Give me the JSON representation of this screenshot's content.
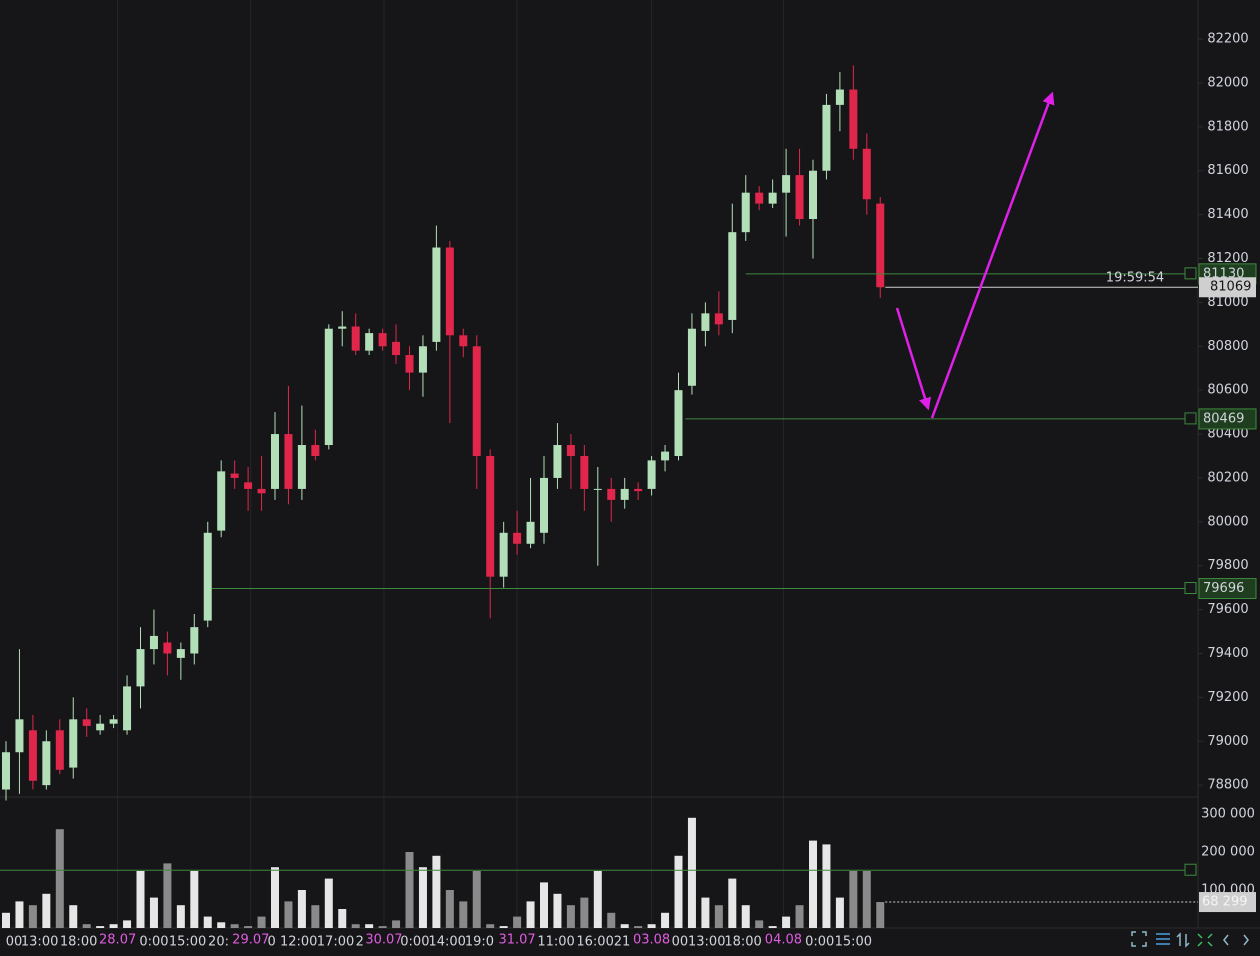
{
  "chart_data": {
    "type": "candlestick",
    "open": [
      78780,
      78950,
      79050,
      78800,
      79050,
      78880,
      79100,
      79050,
      79080,
      79050,
      79250,
      79420,
      79450,
      79380,
      79400,
      79550,
      79960,
      80220,
      80180,
      80150,
      80150,
      80400,
      80150,
      80350,
      80350,
      80880,
      80890,
      80780,
      80860,
      80820,
      80760,
      80680,
      80820,
      81250,
      80850,
      80800,
      80300,
      79750,
      79950,
      79900,
      79950,
      80200,
      80350,
      80300,
      80150,
      80150,
      80100,
      80150,
      80150,
      80280,
      80300,
      80620,
      80870,
      80950,
      80920,
      81320,
      81500,
      81450,
      81500,
      81580,
      81380,
      81600,
      81900,
      81970,
      81700,
      81450
    ],
    "high": [
      79000,
      79420,
      79120,
      79050,
      79100,
      79200,
      79150,
      79120,
      79120,
      79300,
      79520,
      79600,
      79500,
      79450,
      79580,
      80000,
      80280,
      80280,
      80250,
      80300,
      80500,
      80620,
      80530,
      80420,
      80900,
      80960,
      80950,
      80880,
      80880,
      80900,
      80800,
      80850,
      81350,
      81280,
      80880,
      80850,
      80330,
      80000,
      80050,
      80200,
      80300,
      80450,
      80400,
      80350,
      80250,
      80200,
      80200,
      80180,
      80300,
      80350,
      80680,
      80950,
      81000,
      81050,
      81450,
      81580,
      81530,
      81560,
      81700,
      81700,
      81650,
      81950,
      82050,
      82080,
      81770,
      81480
    ],
    "low": [
      78730,
      78760,
      78780,
      78780,
      78850,
      78830,
      79020,
      79030,
      79060,
      79030,
      79150,
      79350,
      79300,
      79280,
      79350,
      79520,
      79930,
      80150,
      80050,
      80050,
      80100,
      80080,
      80100,
      80280,
      80330,
      80800,
      80760,
      80760,
      80780,
      80720,
      80600,
      80570,
      80780,
      80450,
      80750,
      80150,
      79560,
      79700,
      79850,
      79880,
      79900,
      80150,
      80150,
      80050,
      79800,
      80000,
      80060,
      80100,
      80120,
      80230,
      80280,
      80580,
      80800,
      80850,
      80860,
      81280,
      81420,
      81430,
      81300,
      81350,
      81200,
      81560,
      81780,
      81650,
      81400,
      81020
    ],
    "close": [
      78950,
      79100,
      78820,
      79000,
      78870,
      79100,
      79070,
      79080,
      79100,
      79250,
      79420,
      79480,
      79400,
      79420,
      79520,
      79950,
      80230,
      80200,
      80150,
      80130,
      80400,
      80150,
      80350,
      80300,
      80880,
      80890,
      80780,
      80860,
      80800,
      80760,
      80680,
      80800,
      81250,
      80850,
      80800,
      80300,
      79750,
      79950,
      79900,
      80000,
      80200,
      80350,
      80300,
      80150,
      80150,
      80100,
      80150,
      80140,
      80280,
      80320,
      80600,
      80880,
      80950,
      80900,
      81320,
      81500,
      81450,
      81500,
      81580,
      81380,
      81600,
      81900,
      81970,
      81700,
      81470,
      81069
    ],
    "volume": [
      40000,
      70000,
      60000,
      90000,
      260000,
      60000,
      10000,
      5000,
      10000,
      20000,
      150000,
      80000,
      170000,
      60000,
      150000,
      30000,
      15000,
      10000,
      5000,
      30000,
      160000,
      70000,
      100000,
      60000,
      130000,
      50000,
      10000,
      10000,
      5000,
      20000,
      200000,
      160000,
      190000,
      100000,
      70000,
      150000,
      10000,
      5000,
      30000,
      70000,
      120000,
      90000,
      60000,
      80000,
      150000,
      40000,
      10000,
      5000,
      10000,
      40000,
      190000,
      290000,
      80000,
      60000,
      130000,
      60000,
      20000,
      5000,
      30000,
      60000,
      230000,
      220000,
      80000,
      150000,
      150000,
      68299
    ],
    "up_color": "#b2dfb8",
    "down_color": "#e0274b",
    "volume_up_color": "#e6e6e6",
    "volume_down_color": "#8a8a8a",
    "date_color": "#e05ce0",
    "ylim": [
      78746,
      82378
    ],
    "yticks": [
      78800,
      79000,
      79200,
      79400,
      79600,
      79800,
      80000,
      80200,
      80400,
      80600,
      80800,
      81000,
      81200,
      81400,
      81600,
      81800,
      82000,
      82200
    ],
    "volume_ylim": [
      0,
      344737
    ],
    "volume_ticks": [
      {
        "value": 100000,
        "label": "100 000"
      },
      {
        "value": 200000,
        "label": "200 000"
      },
      {
        "value": 300000,
        "label": "300 000"
      }
    ],
    "xticks": [
      {
        "value": 0.6,
        "label": "00"
      },
      {
        "value": 2.5,
        "label": "13:00"
      },
      {
        "value": 5.4,
        "label": "18:00"
      },
      {
        "value": 11.0,
        "label": "0:00"
      },
      {
        "value": 13.5,
        "label": "15:00"
      },
      {
        "value": 15.8,
        "label": "20:"
      },
      {
        "value": 21.3,
        "label": "0 12:00"
      },
      {
        "value": 24.5,
        "label": "17:00"
      },
      {
        "value": 26.3,
        "label": "2"
      },
      {
        "value": 30.4,
        "label": "0:00"
      },
      {
        "value": 32.8,
        "label": "14:00"
      },
      {
        "value": 35.2,
        "label": "19:0"
      },
      {
        "value": 40.9,
        "label": "11:00"
      },
      {
        "value": 43.8,
        "label": "16:00"
      },
      {
        "value": 45.8,
        "label": "21"
      },
      {
        "value": 50.1,
        "label": "00"
      },
      {
        "value": 52.1,
        "label": "13:00"
      },
      {
        "value": 54.8,
        "label": "18:00"
      },
      {
        "value": 60.5,
        "label": "0:00"
      },
      {
        "value": 63.0,
        "label": "15:00"
      }
    ],
    "date_ticks": [
      {
        "value": 8.3,
        "label": "28.07"
      },
      {
        "value": 18.2,
        "label": "29.07"
      },
      {
        "value": 28.1,
        "label": "30.07"
      },
      {
        "value": 38.0,
        "label": "31.07"
      },
      {
        "value": 48.0,
        "label": "03.08"
      },
      {
        "value": 57.8,
        "label": "04.08"
      }
    ],
    "price_lines": [
      {
        "value": 81130,
        "from": 55
      },
      {
        "value": 80469,
        "from": 50.5
      },
      {
        "value": 79696,
        "from": 15.3
      }
    ],
    "volume_lines": [
      152000
    ],
    "last_price": 81069,
    "countdown": "19:59:54",
    "last_volume": {
      "value": 68299,
      "label": "68 299"
    }
  }
}
